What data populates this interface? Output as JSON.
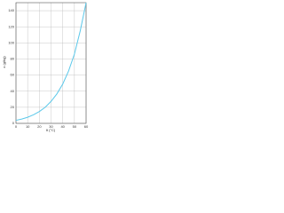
{
  "chart_data": {
    "type": "line",
    "x_label": "θ (°C)",
    "y_label": "x (g/kg)",
    "x": [
      0,
      5,
      10,
      15,
      20,
      25,
      30,
      35,
      40,
      45,
      50,
      55,
      60
    ],
    "series": [
      {
        "name": "x",
        "color": "#5bc8ea",
        "values": [
          3.8,
          5.4,
          7.6,
          10.7,
          14.7,
          20,
          27.3,
          36.6,
          48.8,
          65,
          86,
          115,
          150
        ]
      }
    ],
    "xlim": [
      0,
      60
    ],
    "xticks": [
      0,
      10,
      20,
      30,
      40,
      50,
      60
    ],
    "ylim": [
      0,
      150
    ],
    "yticks": [
      0,
      20,
      40,
      60,
      80,
      100,
      120,
      140
    ],
    "grid": true
  }
}
